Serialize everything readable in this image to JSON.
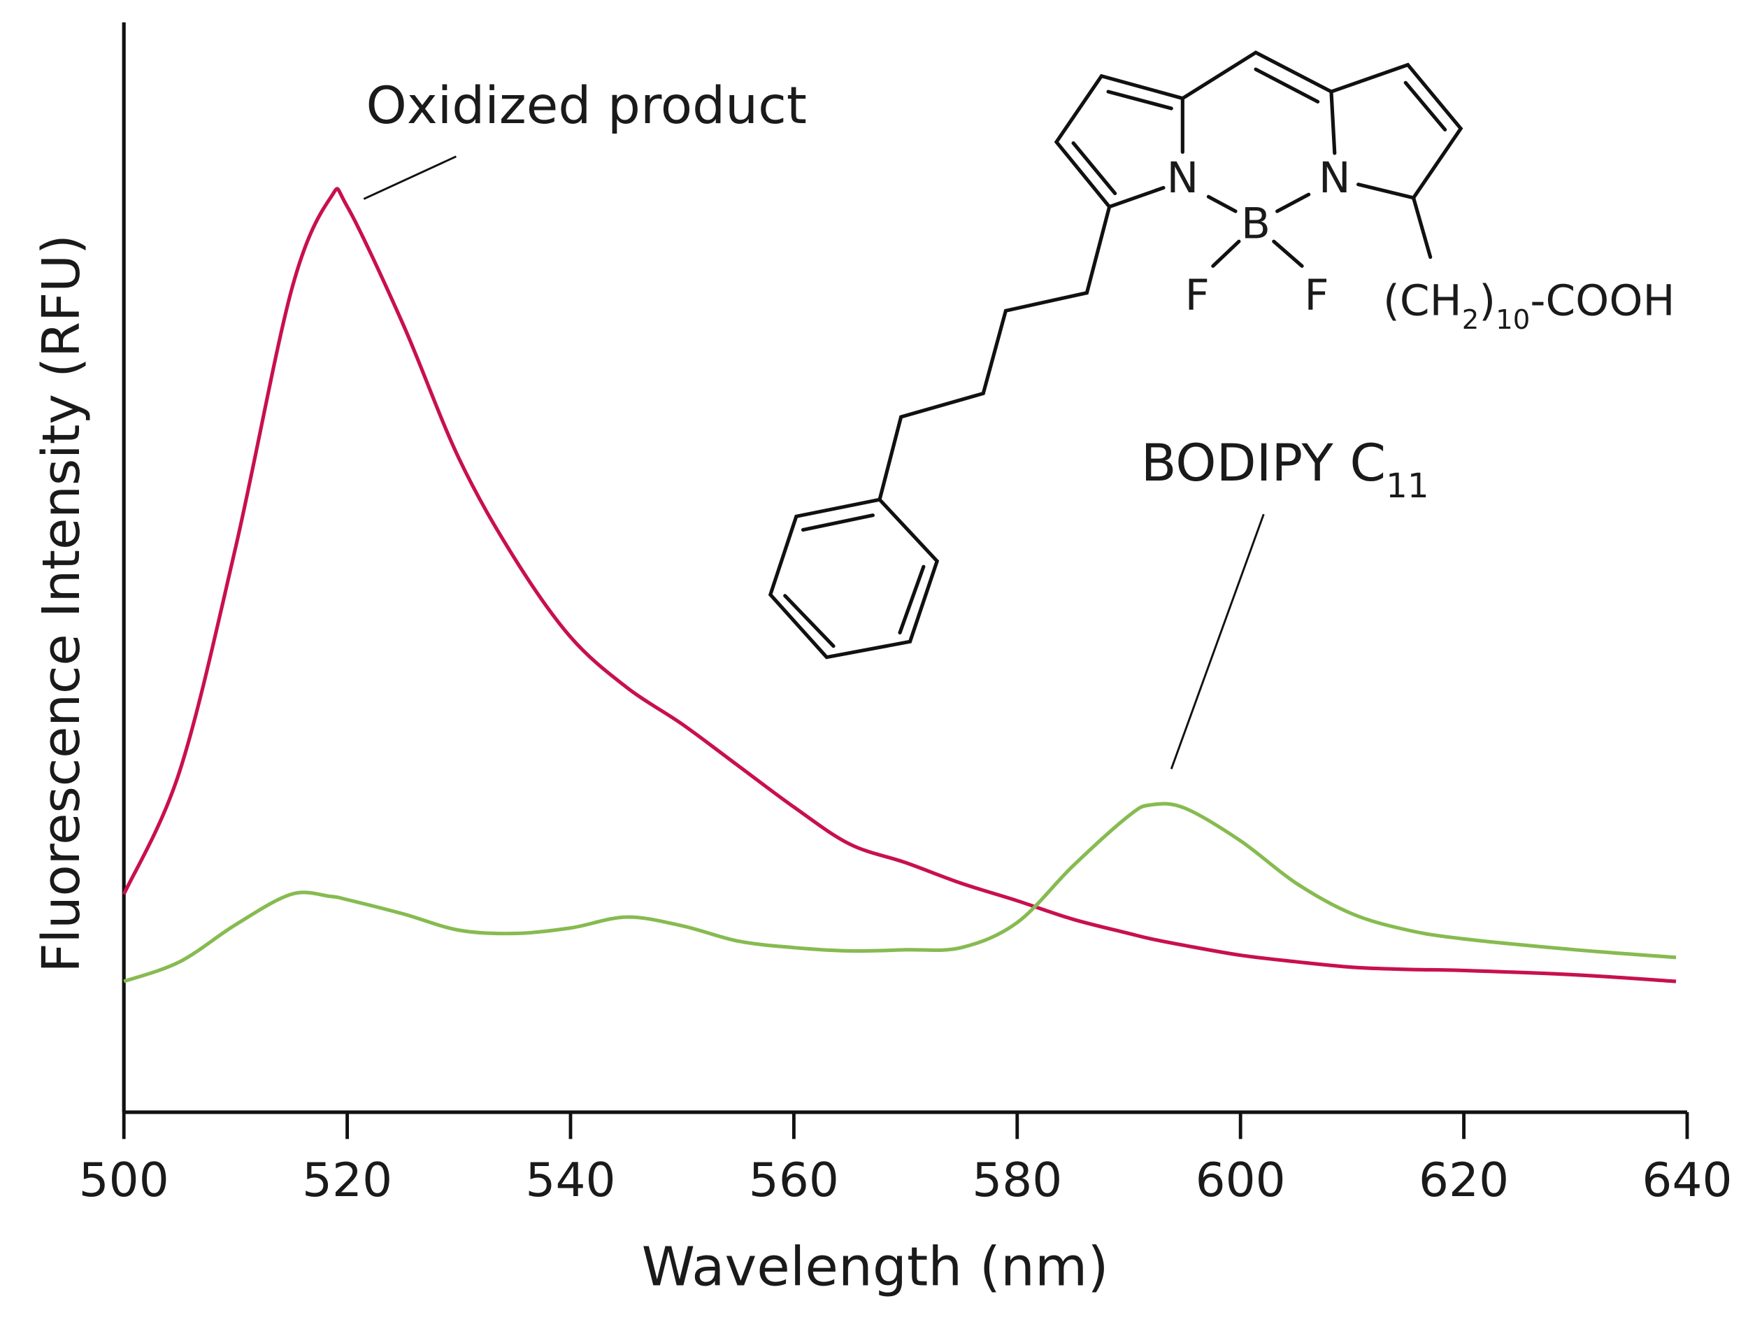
{
  "chart_data": {
    "type": "line",
    "xlabel": "Wavelength (nm)",
    "ylabel": "Fluorescence Intensity (RFU)",
    "x": [
      500,
      505,
      510,
      515,
      518.5,
      520,
      525,
      530,
      535,
      540,
      545,
      550,
      555,
      560,
      565,
      570,
      575,
      580,
      585,
      590,
      592,
      595,
      600,
      605,
      610,
      615,
      620,
      630,
      639
    ],
    "series": [
      {
        "name": "Oxidized product",
        "color": "#c8104e",
        "values": [
          20.0,
          31.3,
          51.8,
          75.4,
          83.9,
          83.1,
          72.3,
          60.0,
          50.8,
          43.6,
          39.0,
          35.6,
          31.8,
          28.0,
          24.6,
          22.9,
          21.0,
          19.4,
          17.7,
          16.4,
          15.9,
          15.3,
          14.4,
          13.8,
          13.3,
          13.1,
          13.0,
          12.6,
          12.0
        ]
      },
      {
        "name": "BODIPY C",
        "name_subscript": "11",
        "color": "#86bb50",
        "values": [
          12.0,
          13.8,
          17.2,
          20.0,
          19.8,
          19.5,
          18.2,
          16.7,
          16.4,
          16.9,
          17.9,
          17.1,
          15.7,
          15.1,
          14.8,
          14.9,
          15.1,
          17.4,
          22.6,
          27.2,
          28.2,
          27.9,
          24.9,
          21.0,
          18.2,
          16.7,
          15.9,
          14.9,
          14.2
        ]
      }
    ],
    "xlim": [
      500,
      640
    ],
    "xticks": [
      500,
      520,
      540,
      560,
      580,
      600,
      620,
      640
    ],
    "ylim": [
      0,
      100
    ],
    "grid": false
  },
  "structure": {
    "atoms": [
      "N",
      "N",
      "B",
      "F",
      "F"
    ],
    "substituent": {
      "open": "(CH",
      "sub1": "2",
      "close": ")",
      "sub2": "10",
      "tail": "-COOH"
    }
  }
}
